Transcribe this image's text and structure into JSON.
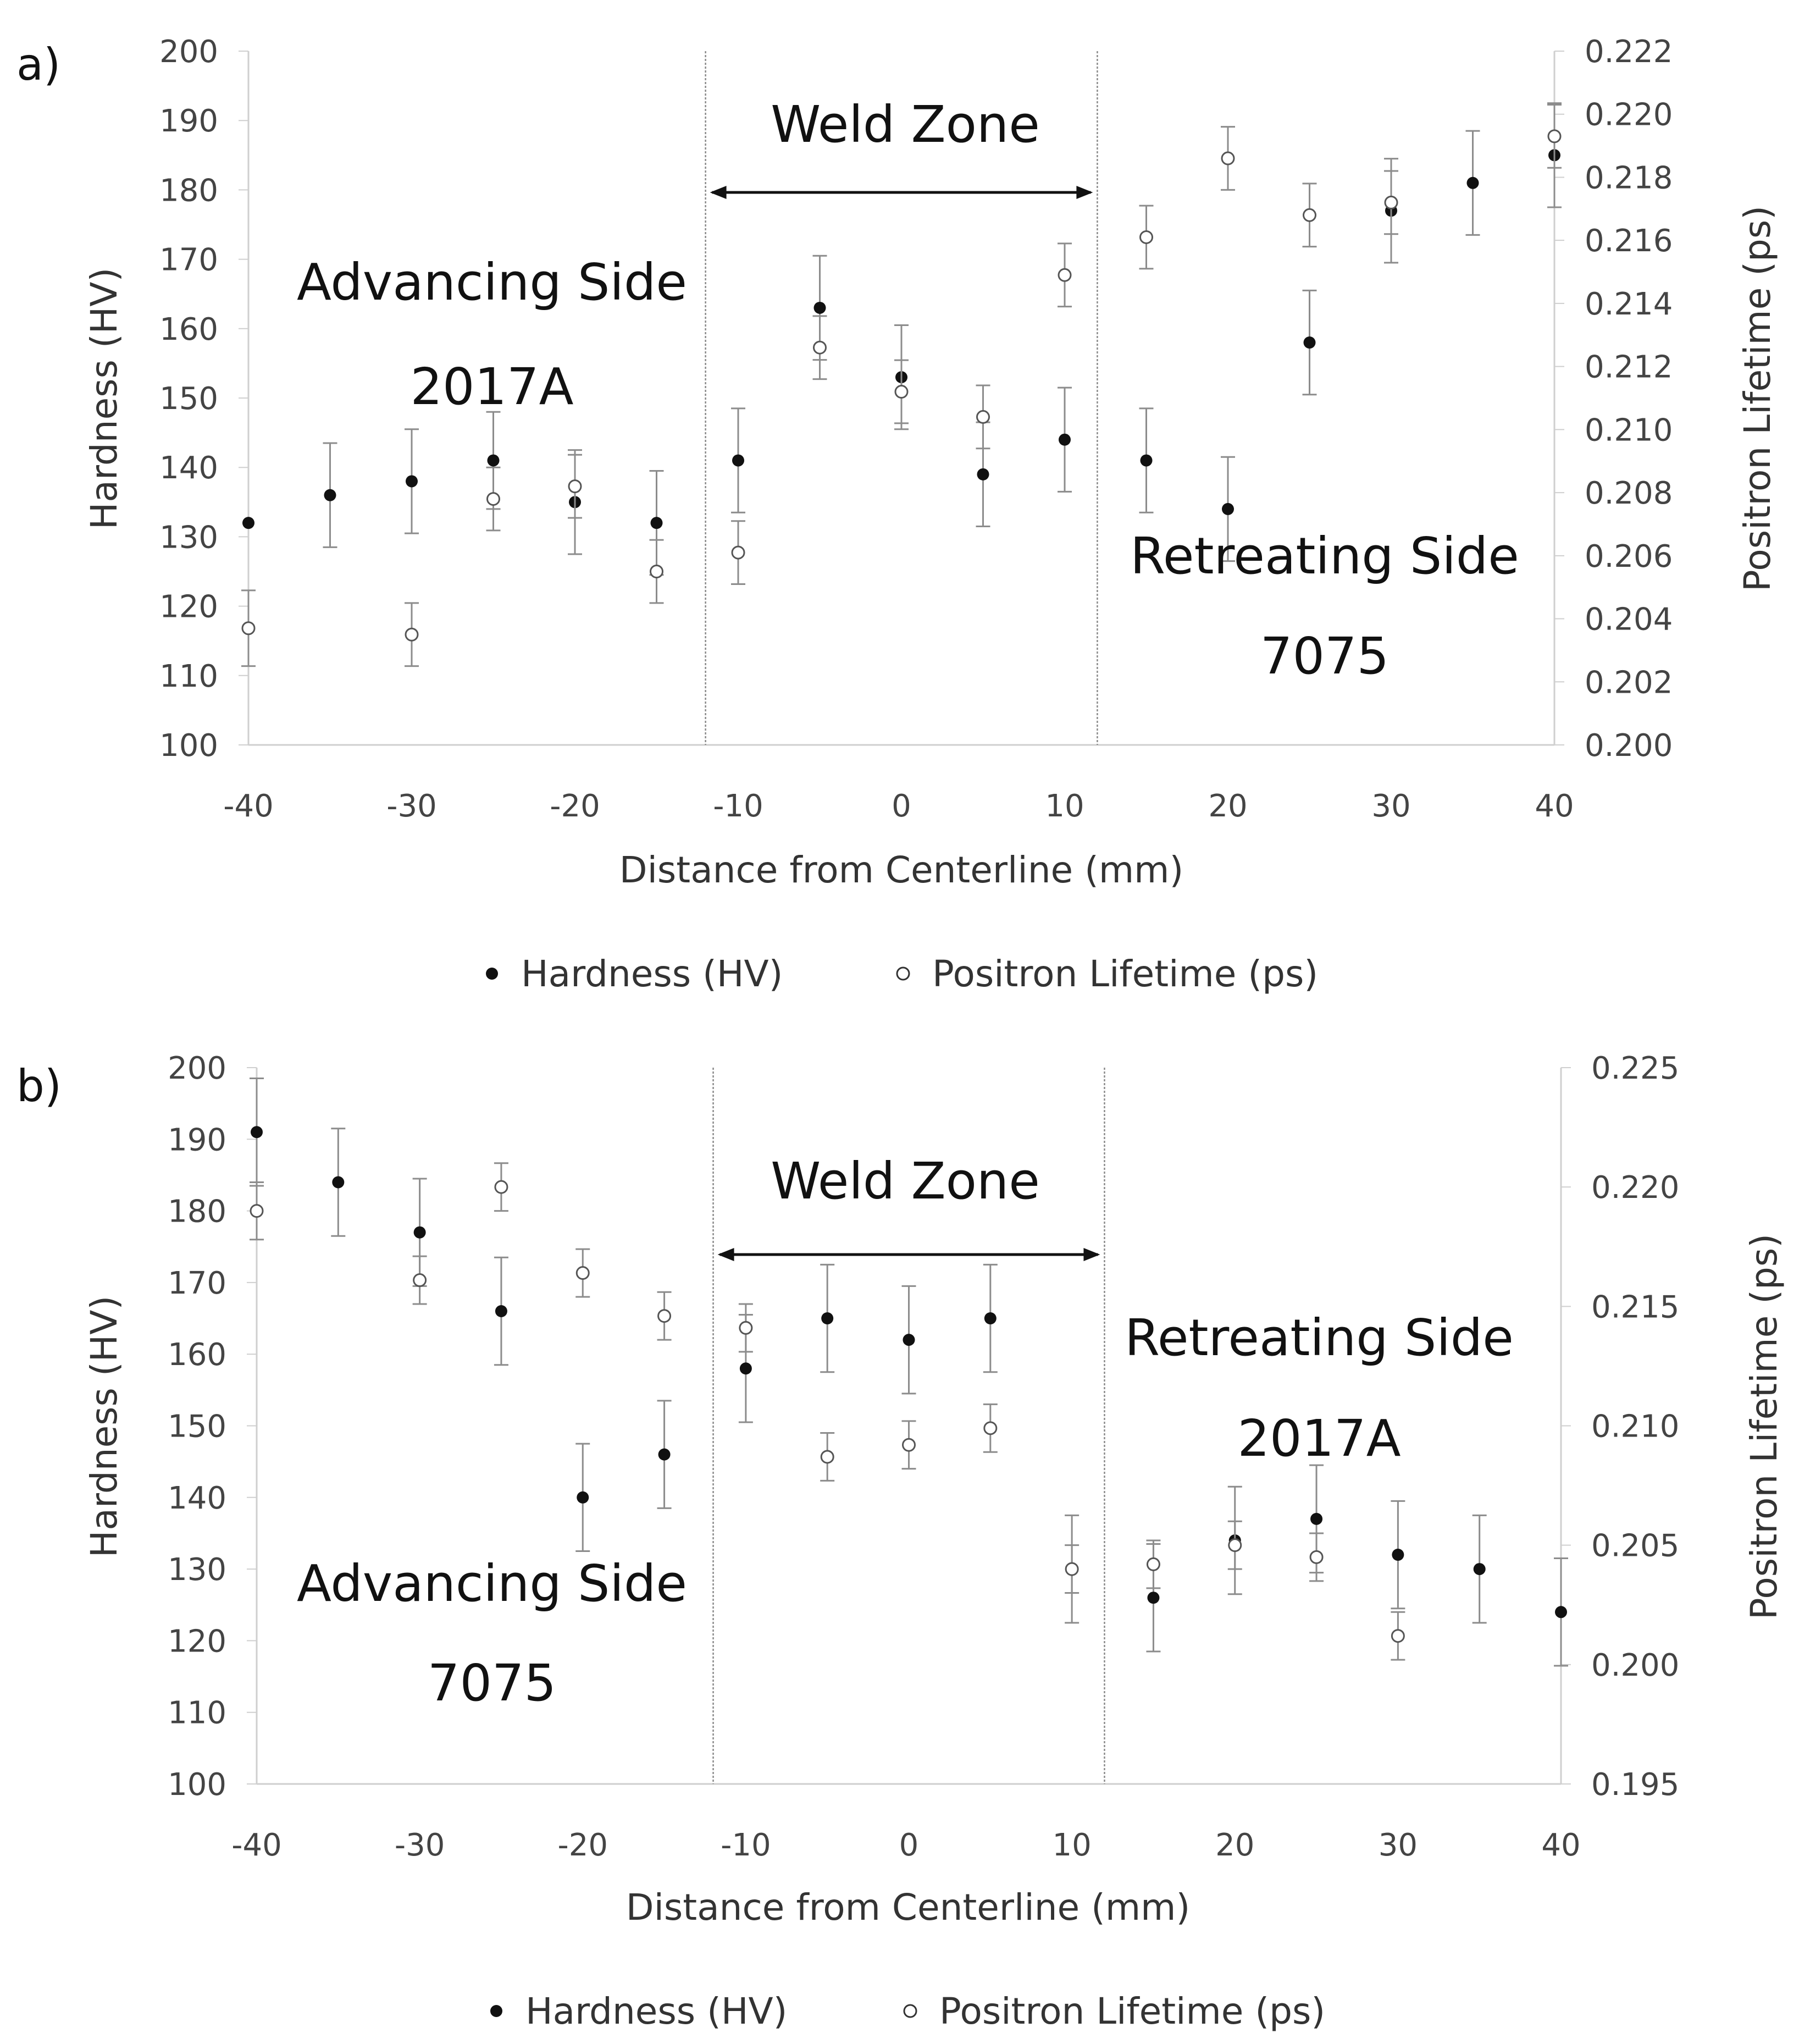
{
  "panels": [
    {
      "label": "a)",
      "legend": {
        "hardness": "Hardness (HV)",
        "positron": "Positron Lifetime (ps)"
      },
      "annotations": {
        "weld_zone": "Weld Zone",
        "advancing_side": "Advancing Side",
        "advancing_material": "2017A",
        "retreating_side": "Retreating Side",
        "retreating_material": "7075"
      },
      "weld_zone_bounds_mm": [
        -12,
        12
      ],
      "chart_data": {
        "type": "scatter",
        "xlabel": "Distance from Centerline (mm)",
        "ylabel": "Hardness (HV)",
        "y2label": "Positron Lifetime (ps)",
        "xlim": [
          -40,
          40
        ],
        "ylim": [
          100,
          200
        ],
        "y2lim": [
          0.2,
          0.222
        ],
        "xticks": [
          -40,
          -30,
          -20,
          -10,
          0,
          10,
          20,
          30,
          40
        ],
        "yticks": [
          100,
          110,
          120,
          130,
          140,
          150,
          160,
          170,
          180,
          190,
          200
        ],
        "y2ticks": [
          "0.200",
          "0.202",
          "0.204",
          "0.206",
          "0.208",
          "0.210",
          "0.212",
          "0.214",
          "0.216",
          "0.218",
          "0.220",
          "0.222"
        ],
        "series": [
          {
            "name": "Hardness (HV)",
            "axis": "left",
            "marker": "filled-circle",
            "x": [
              -40,
              -35,
              -30,
              -25,
              -20,
              -15,
              -10,
              -5,
              0,
              5,
              10,
              15,
              20,
              25,
              30,
              35,
              40
            ],
            "y": [
              132,
              136,
              138,
              141,
              135,
              132,
              141,
              163,
              153,
              139,
              144,
              141,
              134,
              158,
              177,
              181,
              185
            ],
            "err": [
              0,
              7.5,
              7.5,
              7,
              7.5,
              7.5,
              7.5,
              7.5,
              7.5,
              7.5,
              7.5,
              7.5,
              7.5,
              7.5,
              7.5,
              7.5,
              7.5
            ]
          },
          {
            "name": "Positron Lifetime (ps)",
            "axis": "right",
            "marker": "open-circle",
            "x": [
              -40,
              -30,
              -25,
              -20,
              -15,
              -10,
              -5,
              0,
              5,
              10,
              15,
              20,
              25,
              30,
              40
            ],
            "y": [
              0.2037,
              0.2035,
              0.2078,
              0.2082,
              0.2055,
              0.2061,
              0.2126,
              0.2112,
              0.2104,
              0.2149,
              0.2161,
              0.2186,
              0.2168,
              0.2172,
              0.2193
            ],
            "err": [
              0.0012,
              0.001,
              0.001,
              0.001,
              0.001,
              0.001,
              0.001,
              0.001,
              0.001,
              0.001,
              0.001,
              0.001,
              0.001,
              0.001,
              0.001
            ]
          }
        ]
      }
    },
    {
      "label": "b)",
      "legend": {
        "hardness": "Hardness (HV)",
        "positron": "Positron Lifetime (ps)"
      },
      "annotations": {
        "weld_zone": "Weld Zone",
        "advancing_side": "Advancing Side",
        "advancing_material": "7075",
        "retreating_side": "Retreating Side",
        "retreating_material": "2017A"
      },
      "weld_zone_bounds_mm": [
        -12,
        12
      ],
      "chart_data": {
        "type": "scatter",
        "xlabel": "Distance from Centerline (mm)",
        "ylabel": "Hardness (HV)",
        "y2label": "Positron Lifetime (ps)",
        "xlim": [
          -40,
          40
        ],
        "ylim": [
          100,
          200
        ],
        "y2lim": [
          0.195,
          0.225
        ],
        "xticks": [
          -40,
          -30,
          -20,
          -10,
          0,
          10,
          20,
          30,
          40
        ],
        "yticks": [
          100,
          110,
          120,
          130,
          140,
          150,
          160,
          170,
          180,
          190,
          200
        ],
        "y2ticks": [
          "0.195",
          "0.200",
          "0.205",
          "0.210",
          "0.215",
          "0.220",
          "0.225"
        ],
        "series": [
          {
            "name": "Hardness (HV)",
            "axis": "left",
            "marker": "filled-circle",
            "x": [
              -40,
              -35,
              -30,
              -25,
              -20,
              -15,
              -10,
              -5,
              0,
              5,
              10,
              15,
              20,
              25,
              30,
              35,
              40
            ],
            "y": [
              191,
              184,
              177,
              166,
              140,
              146,
              158,
              165,
              162,
              165,
              130,
              126,
              134,
              137,
              132,
              130,
              124
            ],
            "err": [
              7.5,
              7.5,
              7.5,
              7.5,
              7.5,
              7.5,
              7.5,
              7.5,
              7.5,
              7.5,
              7.5,
              7.5,
              7.5,
              7.5,
              7.5,
              7.5,
              7.5
            ]
          },
          {
            "name": "Positron Lifetime (ps)",
            "axis": "right",
            "marker": "open-circle",
            "x": [
              -40,
              -30,
              -25,
              -20,
              -15,
              -10,
              -5,
              0,
              5,
              10,
              15,
              20,
              25,
              30
            ],
            "y": [
              0.219,
              0.2161,
              0.22,
              0.2164,
              0.2146,
              0.2141,
              0.2087,
              0.2092,
              0.2099,
              0.204,
              0.2042,
              0.205,
              0.2045,
              0.2012
            ],
            "err": [
              0.0012,
              0.001,
              0.001,
              0.001,
              0.001,
              0.001,
              0.001,
              0.001,
              0.001,
              0.001,
              0.001,
              0.001,
              0.001,
              0.001
            ]
          }
        ]
      }
    }
  ]
}
